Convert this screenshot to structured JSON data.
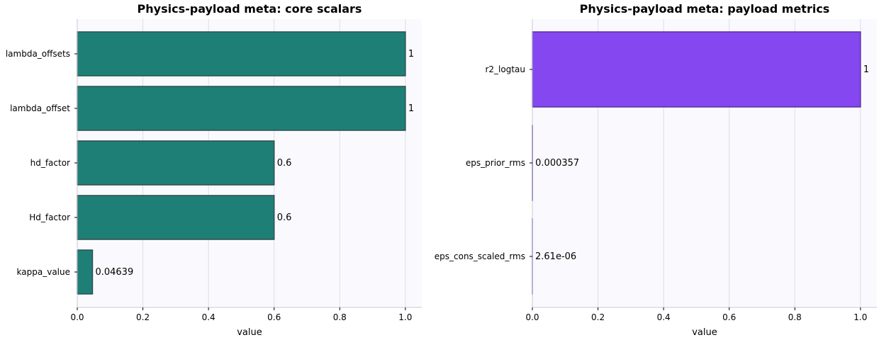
{
  "chart_data": [
    {
      "type": "bar",
      "orientation": "horizontal",
      "title": "Physics-payload meta: core scalars",
      "xlabel": "value",
      "ylabel": "",
      "categories": [
        "lambda_offsets",
        "lambda_offset",
        "hd_factor",
        "Hd_factor",
        "kappa_value"
      ],
      "values": [
        1,
        1,
        0.6,
        0.6,
        0.04639
      ],
      "value_labels": [
        "1",
        "1",
        "0.6",
        "0.6",
        "0.04639"
      ],
      "xlim": [
        0,
        1.05
      ],
      "xticks": [
        0,
        0.2,
        0.4,
        0.6,
        0.8,
        1.0
      ],
      "xtick_labels": [
        "0.0",
        "0.2",
        "0.4",
        "0.6",
        "0.8",
        "1.0"
      ],
      "grid": "x",
      "bar_color": "#1e7f76",
      "edge_color": "#2f4f4f"
    },
    {
      "type": "bar",
      "orientation": "horizontal",
      "title": "Physics-payload meta: payload metrics",
      "xlabel": "value",
      "ylabel": "",
      "categories": [
        "r2_logtau",
        "eps_prior_rms",
        "eps_cons_scaled_rms"
      ],
      "values": [
        1,
        0.000357,
        2.61e-06
      ],
      "value_labels": [
        "1",
        "0.000357",
        "2.61e-06"
      ],
      "xlim": [
        0,
        1.05
      ],
      "xticks": [
        0,
        0.2,
        0.4,
        0.6,
        0.8,
        1.0
      ],
      "xtick_labels": [
        "0.0",
        "0.2",
        "0.4",
        "0.6",
        "0.8",
        "1.0"
      ],
      "grid": "x",
      "bar_color": "#8447f0",
      "edge_color": "#5b2ea6"
    }
  ]
}
